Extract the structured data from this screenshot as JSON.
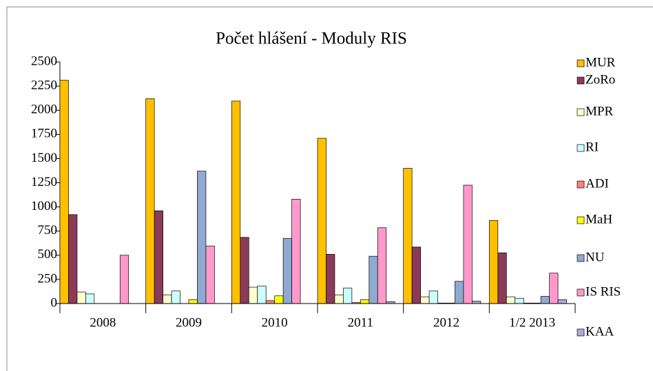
{
  "chart_data": {
    "type": "bar",
    "title": "Počet hlášení - Moduly RIS",
    "categories": [
      "2008",
      "2009",
      "2010",
      "2011",
      "2012",
      "1/2 2013"
    ],
    "series": [
      {
        "name": "MUR",
        "color": "#ffc000",
        "values": [
          2310,
          2120,
          2095,
          1710,
          1400,
          860
        ]
      },
      {
        "name": "ZoRo",
        "color": "#8b3a5a",
        "values": [
          920,
          960,
          685,
          510,
          585,
          525
        ]
      },
      {
        "name": "MPR",
        "color": "#ffffcc",
        "values": [
          120,
          90,
          170,
          90,
          70,
          70
        ]
      },
      {
        "name": "RI",
        "color": "#ccffff",
        "values": [
          100,
          130,
          180,
          160,
          130,
          55
        ]
      },
      {
        "name": "ADI",
        "color": "#ff8080",
        "values": [
          0,
          0,
          30,
          10,
          5,
          5
        ]
      },
      {
        "name": "MaH",
        "color": "#ffff00",
        "values": [
          0,
          40,
          80,
          40,
          5,
          5
        ]
      },
      {
        "name": "NU",
        "color": "#8fa9d0",
        "values": [
          0,
          1370,
          675,
          490,
          230,
          75
        ]
      },
      {
        "name": "IS RIS",
        "color": "#ff99cc",
        "values": [
          500,
          595,
          1080,
          785,
          1225,
          315
        ]
      },
      {
        "name": "KAA",
        "color": "#b4a7d6",
        "values": [
          0,
          0,
          0,
          20,
          25,
          40
        ]
      }
    ],
    "ylim": [
      0,
      2500
    ],
    "yticks": [
      0,
      250,
      500,
      750,
      1000,
      1250,
      1500,
      1750,
      2000,
      2250,
      2500
    ],
    "legend": "right"
  }
}
